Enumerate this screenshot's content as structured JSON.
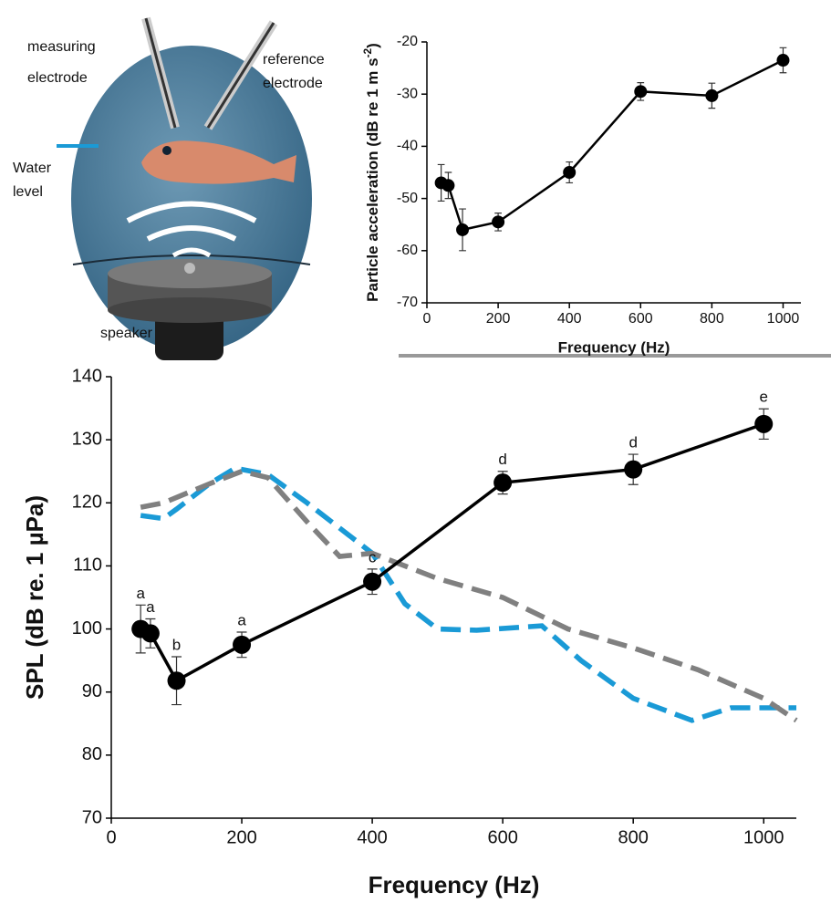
{
  "illustration": {
    "measuring": [
      "measuring",
      "electrode"
    ],
    "reference": [
      "reference",
      "electrode"
    ],
    "water": [
      "Water",
      "level"
    ],
    "speaker": "speaker"
  },
  "chart_data": [
    {
      "type": "line",
      "ylabel": "Particle acceleration (dB re 1 m s",
      "ylabel_sup": "-2",
      "ylabel_end": ")",
      "xlabel": "Frequency (Hz)",
      "xlim": [
        0,
        1050
      ],
      "xticks": [
        0,
        200,
        400,
        600,
        800,
        1000
      ],
      "ylim": [
        -70,
        -20
      ],
      "yticks": [
        -70,
        -60,
        -50,
        -40,
        -30,
        -20
      ],
      "series": [
        {
          "color": "#000000",
          "marker": true,
          "x": [
            40,
            60,
            100,
            200,
            400,
            600,
            800,
            1000
          ],
          "values": [
            -47,
            -47.5,
            -56,
            -54.5,
            -45,
            -29.5,
            -30.3,
            -23.5
          ],
          "errors": [
            3.5,
            2.5,
            4,
            1.7,
            2,
            1.7,
            2.4,
            2.4
          ]
        }
      ]
    },
    {
      "type": "line",
      "ylabel": "SPL (dB re. 1 µPa)",
      "xlabel": "Frequency (Hz)",
      "xlim": [
        0,
        1050
      ],
      "xticks": [
        0,
        200,
        400,
        600,
        800,
        1000
      ],
      "ylim": [
        70,
        140
      ],
      "yticks": [
        70,
        80,
        90,
        100,
        110,
        120,
        130,
        140
      ],
      "series": [
        {
          "color": "#1a9ad6",
          "dash": true,
          "x": [
            45,
            80,
            100,
            150,
            190,
            240,
            300,
            350,
            400,
            450,
            500,
            560,
            660,
            720,
            800,
            890,
            950,
            1050
          ],
          "values": [
            118,
            117.5,
            119,
            123,
            125.5,
            124.5,
            120,
            116,
            112,
            104,
            100,
            99.8,
            100.5,
            95,
            89,
            85.5,
            87.5,
            87.5
          ]
        },
        {
          "color": "#808080",
          "dash": true,
          "x": [
            45,
            80,
            150,
            200,
            240,
            300,
            350,
            400,
            500,
            600,
            700,
            800,
            900,
            1000,
            1050
          ],
          "values": [
            119.3,
            120,
            123,
            125,
            124,
            117,
            111.5,
            112,
            108,
            105,
            100,
            97,
            93.5,
            89,
            85.5
          ]
        },
        {
          "color": "#000000",
          "marker": true,
          "x": [
            45,
            60,
            100,
            200,
            400,
            600,
            800,
            1000
          ],
          "values": [
            100,
            99.3,
            91.8,
            97.5,
            107.5,
            123.2,
            125.3,
            132.5
          ],
          "errors": [
            3.8,
            2.3,
            3.8,
            2,
            2,
            1.8,
            2.4,
            2.4
          ],
          "annotations": [
            "a",
            "a",
            "b",
            "a",
            "c",
            "d",
            "d",
            "e"
          ]
        }
      ]
    }
  ]
}
